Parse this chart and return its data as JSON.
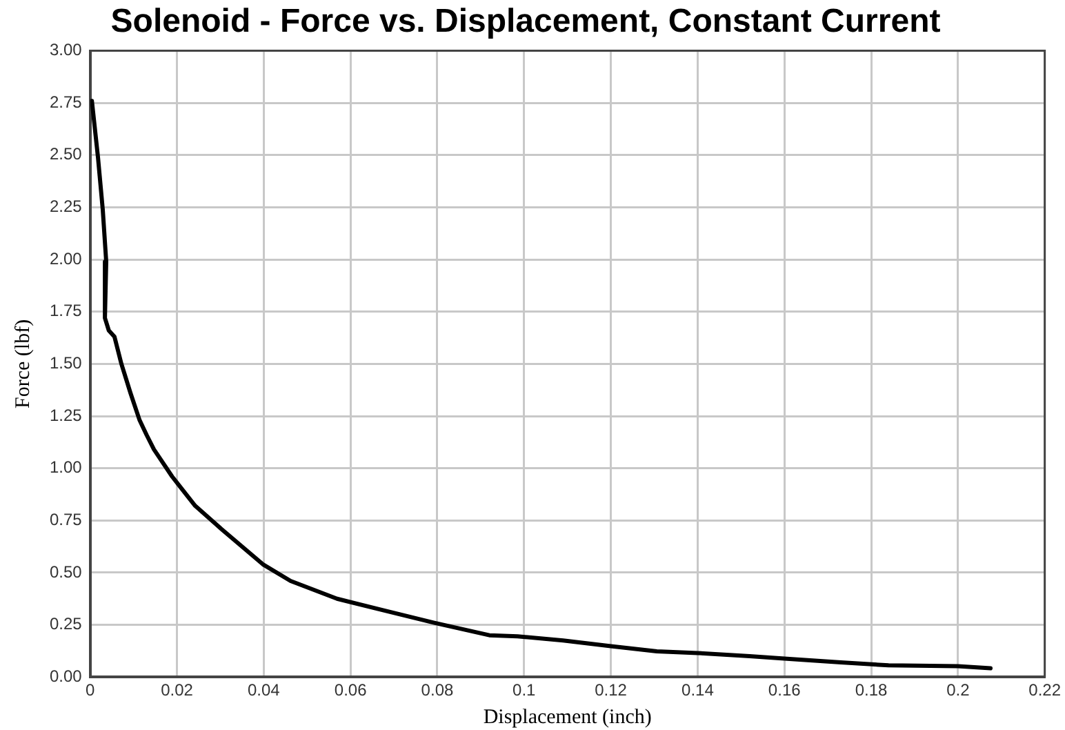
{
  "chart_data": {
    "type": "line",
    "title": "Solenoid - Force vs. Displacement, Constant Current",
    "xlabel": "Displacement (inch)",
    "ylabel": "Force (lbf)",
    "series": [
      {
        "color": "#000000",
        "x": [
          0.0004,
          0.0018,
          0.0029,
          0.0037,
          0.0034,
          0.0043,
          0.0056,
          0.0072,
          0.0093,
          0.0114,
          0.013,
          0.0147,
          0.0189,
          0.0242,
          0.0302,
          0.0398,
          0.0462,
          0.0569,
          0.0675,
          0.0793,
          0.092,
          0.0985,
          0.109,
          0.12,
          0.1306,
          0.14,
          0.152,
          0.16,
          0.173,
          0.184,
          0.2,
          0.2075
        ],
        "values": [
          2.76,
          2.49,
          2.24,
          1.99,
          1.72,
          1.66,
          1.63,
          1.5,
          1.36,
          1.23,
          1.16,
          1.09,
          0.96,
          0.82,
          0.71,
          0.54,
          0.46,
          0.375,
          0.32,
          0.26,
          0.2,
          0.195,
          0.175,
          0.148,
          0.123,
          0.115,
          0.1,
          0.088,
          0.07,
          0.056,
          0.052,
          0.042
        ]
      }
    ],
    "xlim": [
      0,
      0.22
    ],
    "xticks": [
      0,
      0.02,
      0.04,
      0.06,
      0.08,
      0.1,
      0.12,
      0.14,
      0.16,
      0.18,
      0.2,
      0.22
    ],
    "ylim": [
      0,
      3
    ],
    "yticks": [
      {
        "value": 0,
        "label": "0.00"
      },
      {
        "value": 0.25,
        "label": "0.25"
      },
      {
        "value": 0.5,
        "label": "0.50"
      },
      {
        "value": 0.75,
        "label": "0.75"
      },
      {
        "value": 1,
        "label": "1.00"
      },
      {
        "value": 1.25,
        "label": "1.25"
      },
      {
        "value": 1.5,
        "label": "1.50"
      },
      {
        "value": 1.75,
        "label": "1.75"
      },
      {
        "value": 2,
        "label": "2.00"
      },
      {
        "value": 2.25,
        "label": "2.25"
      },
      {
        "value": 2.5,
        "label": "2.50"
      },
      {
        "value": 2.75,
        "label": "2.75"
      },
      {
        "value": 3,
        "label": "3.00"
      }
    ],
    "grid": true
  }
}
